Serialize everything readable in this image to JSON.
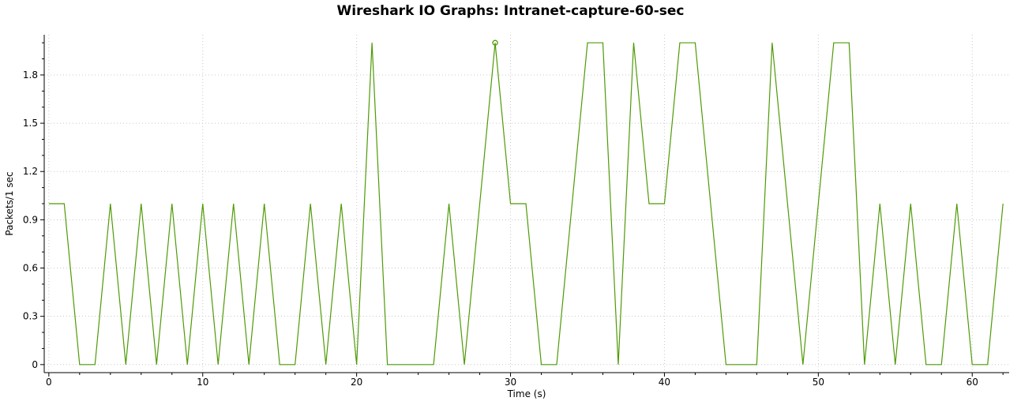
{
  "chart_data": {
    "type": "line",
    "title": "Wireshark IO Graphs: Intranet-capture-60-sec",
    "xlabel": "Time (s)",
    "ylabel": "Packets/1 sec",
    "xlim": [
      -0.3,
      62.4
    ],
    "ylim": [
      -0.05,
      2.05
    ],
    "x_ticks": [
      0,
      10,
      20,
      30,
      40,
      50,
      60
    ],
    "x_tick_labels": [
      "0",
      "10",
      "20",
      "30",
      "40",
      "50",
      "60"
    ],
    "y_ticks": [
      0,
      0.3,
      0.6,
      0.9,
      1.2,
      1.5,
      1.8
    ],
    "y_tick_labels": [
      "0",
      "0.3",
      "0.6",
      "0.9",
      "1.2",
      "1.5",
      "1.8"
    ],
    "grid": true,
    "series": [
      {
        "color": "#4e9a06",
        "x": [
          0,
          1,
          2,
          3,
          4,
          5,
          6,
          7,
          8,
          9,
          10,
          11,
          12,
          13,
          14,
          15,
          16,
          17,
          18,
          19,
          20,
          21,
          22,
          23,
          24,
          25,
          26,
          27,
          28,
          29,
          30,
          31,
          32,
          33,
          34,
          35,
          36,
          37,
          38,
          39,
          40,
          41,
          42,
          43,
          44,
          45,
          46,
          47,
          48,
          49,
          50,
          51,
          52,
          53,
          54,
          55,
          56,
          57,
          58,
          59,
          60,
          61,
          62
        ],
        "y": [
          1,
          1,
          0,
          0,
          1,
          0,
          1,
          0,
          1,
          0,
          1,
          0,
          1,
          0,
          1,
          0,
          0,
          1,
          0,
          1,
          0,
          2,
          0,
          0,
          0,
          0,
          1,
          0,
          1,
          2,
          1,
          1,
          0,
          0,
          1,
          2,
          2,
          0,
          2,
          1,
          1,
          2,
          2,
          1,
          0,
          0,
          0,
          2,
          1,
          0,
          1,
          2,
          2,
          0,
          1,
          0,
          1,
          0,
          0,
          1,
          0,
          0,
          1
        ]
      }
    ],
    "marker": {
      "x": 29,
      "y": 2
    }
  }
}
